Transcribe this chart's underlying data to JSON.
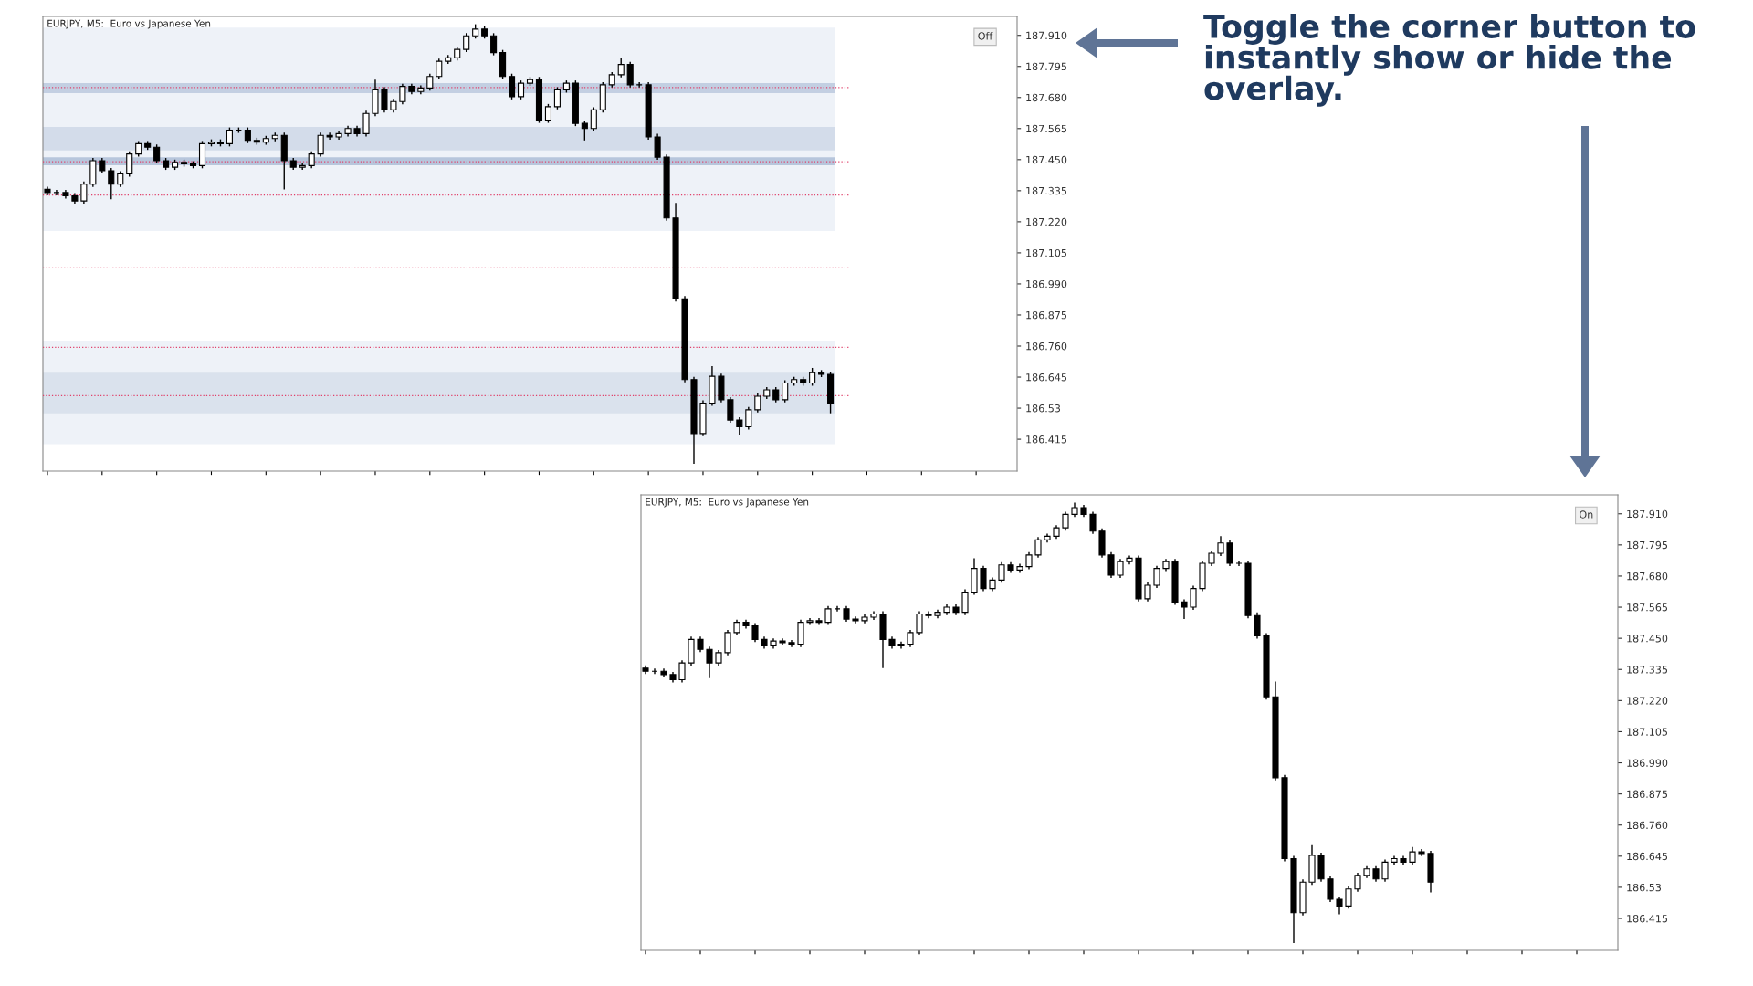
{
  "chart_data": [
    {
      "type": "candlestick",
      "title": "EURJPY, M5:  Euro vs Japanese Yen",
      "tick_labels": "y",
      "grid": false,
      "categories": [
        null,
        null,
        null,
        null,
        null,
        null,
        null,
        null,
        null,
        null,
        null,
        null,
        null,
        null,
        null,
        null,
        null,
        null,
        null,
        null,
        null,
        null,
        null,
        null,
        null,
        null,
        null,
        null,
        null,
        null,
        null,
        null,
        null,
        null,
        null,
        null,
        null,
        null,
        null,
        null,
        null,
        null,
        null,
        null,
        null,
        null,
        null,
        null,
        null,
        null,
        null,
        null,
        null,
        null,
        null,
        null,
        null,
        null,
        null,
        null,
        null,
        null,
        null,
        null,
        null,
        null,
        null,
        null,
        null,
        null,
        null,
        null,
        null,
        null,
        null,
        null,
        null,
        null,
        null,
        null,
        null,
        null,
        null,
        null,
        null,
        null,
        null,
        null,
        null,
        null,
        null,
        null,
        null,
        null,
        null,
        null,
        null,
        null,
        null,
        null,
        null,
        null,
        null,
        null,
        null,
        null,
        null
      ],
      "ohlc": [
        [
          187.34,
          187.35,
          187.318,
          187.328
        ],
        [
          187.328,
          187.338,
          187.318,
          187.328
        ],
        [
          187.328,
          187.338,
          187.306,
          187.316
        ],
        [
          187.316,
          187.326,
          187.287,
          187.297
        ],
        [
          187.297,
          187.369,
          187.287,
          187.359
        ],
        [
          187.359,
          187.456,
          187.349,
          187.446
        ],
        [
          187.446,
          187.456,
          187.399,
          187.409
        ],
        [
          187.409,
          187.419,
          187.303,
          187.359
        ],
        [
          187.359,
          187.407,
          187.349,
          187.397
        ],
        [
          187.397,
          187.481,
          187.387,
          187.471
        ],
        [
          187.471,
          187.519,
          187.461,
          187.509
        ],
        [
          187.509,
          187.519,
          187.486,
          187.496
        ],
        [
          187.496,
          187.506,
          187.436,
          187.446
        ],
        [
          187.446,
          187.456,
          187.412,
          187.422
        ],
        [
          187.422,
          187.45,
          187.412,
          187.44
        ],
        [
          187.44,
          187.45,
          187.424,
          187.434
        ],
        [
          187.434,
          187.444,
          187.418,
          187.428
        ],
        [
          187.428,
          187.519,
          187.418,
          187.509
        ],
        [
          187.509,
          187.525,
          187.499,
          187.515
        ],
        [
          187.515,
          187.525,
          187.499,
          187.509
        ],
        [
          187.509,
          187.569,
          187.499,
          187.559
        ],
        [
          187.559,
          187.569,
          187.549,
          187.559
        ],
        [
          187.559,
          187.569,
          187.511,
          187.521
        ],
        [
          187.521,
          187.531,
          187.505,
          187.515
        ],
        [
          187.515,
          187.538,
          187.505,
          187.528
        ],
        [
          187.528,
          187.55,
          187.518,
          187.54
        ],
        [
          187.54,
          187.55,
          187.34,
          187.446
        ],
        [
          187.446,
          187.456,
          187.412,
          187.422
        ],
        [
          187.422,
          187.438,
          187.412,
          187.428
        ],
        [
          187.428,
          187.481,
          187.418,
          187.471
        ],
        [
          187.471,
          187.55,
          187.461,
          187.54
        ],
        [
          187.54,
          187.55,
          187.524,
          187.534
        ],
        [
          187.534,
          187.556,
          187.524,
          187.546
        ],
        [
          187.546,
          187.575,
          187.536,
          187.565
        ],
        [
          187.565,
          187.575,
          187.536,
          187.546
        ],
        [
          187.546,
          187.631,
          187.536,
          187.621
        ],
        [
          187.621,
          187.746,
          187.611,
          187.708
        ],
        [
          187.708,
          187.718,
          187.624,
          187.634
        ],
        [
          187.634,
          187.675,
          187.624,
          187.665
        ],
        [
          187.665,
          187.731,
          187.655,
          187.721
        ],
        [
          187.721,
          187.731,
          187.692,
          187.702
        ],
        [
          187.702,
          187.725,
          187.692,
          187.715
        ],
        [
          187.715,
          187.768,
          187.705,
          187.758
        ],
        [
          187.758,
          187.824,
          187.748,
          187.814
        ],
        [
          187.814,
          187.837,
          187.804,
          187.827
        ],
        [
          187.827,
          187.868,
          187.817,
          187.858
        ],
        [
          187.858,
          187.918,
          187.848,
          187.908
        ],
        [
          187.908,
          187.951,
          187.898,
          187.933
        ],
        [
          187.933,
          187.943,
          187.898,
          187.908
        ],
        [
          187.908,
          187.918,
          187.836,
          187.846
        ],
        [
          187.846,
          187.856,
          187.748,
          187.758
        ],
        [
          187.758,
          187.768,
          187.673,
          187.683
        ],
        [
          187.683,
          187.743,
          187.673,
          187.733
        ],
        [
          187.733,
          187.756,
          187.723,
          187.746
        ],
        [
          187.746,
          187.756,
          187.586,
          187.596
        ],
        [
          187.596,
          187.656,
          187.586,
          187.646
        ],
        [
          187.646,
          187.718,
          187.636,
          187.708
        ],
        [
          187.708,
          187.743,
          187.698,
          187.733
        ],
        [
          187.733,
          187.743,
          187.574,
          187.584
        ],
        [
          187.584,
          187.594,
          187.521,
          187.565
        ],
        [
          187.565,
          187.644,
          187.555,
          187.634
        ],
        [
          187.634,
          187.737,
          187.624,
          187.727
        ],
        [
          187.727,
          187.774,
          187.717,
          187.764
        ],
        [
          187.764,
          187.827,
          187.754,
          187.802
        ],
        [
          187.802,
          187.812,
          187.717,
          187.727
        ],
        [
          187.727,
          187.737,
          187.717,
          187.727
        ],
        [
          187.727,
          187.737,
          187.524,
          187.534
        ],
        [
          187.534,
          187.546,
          187.449,
          187.459
        ],
        [
          187.459,
          187.469,
          187.224,
          187.234
        ],
        [
          187.234,
          187.29,
          186.925,
          186.935
        ],
        [
          186.935,
          186.945,
          186.626,
          186.636
        ],
        [
          186.636,
          186.646,
          186.324,
          186.436
        ],
        [
          186.436,
          186.559,
          186.426,
          186.549
        ],
        [
          186.549,
          186.686,
          186.539,
          186.648
        ],
        [
          186.648,
          186.658,
          186.551,
          186.561
        ],
        [
          186.561,
          186.571,
          186.476,
          186.486
        ],
        [
          186.486,
          186.496,
          186.43,
          186.461
        ],
        [
          186.461,
          186.534,
          186.451,
          186.524
        ],
        [
          186.524,
          186.584,
          186.514,
          186.574
        ],
        [
          186.574,
          186.608,
          186.564,
          186.598
        ],
        [
          186.598,
          186.608,
          186.551,
          186.561
        ],
        [
          186.561,
          186.633,
          186.551,
          186.623
        ],
        [
          186.623,
          186.646,
          186.613,
          186.636
        ],
        [
          186.636,
          186.646,
          186.613,
          186.623
        ],
        [
          186.623,
          186.679,
          186.613,
          186.661
        ],
        [
          186.661,
          186.671,
          186.645,
          186.655
        ],
        [
          186.655,
          186.665,
          186.511,
          186.549
        ],
        null,
        null,
        null,
        null,
        null,
        null,
        null,
        null,
        null,
        null,
        null,
        null,
        null,
        null,
        null,
        null,
        null,
        null,
        null,
        null
      ],
      "ylim": [
        186.297,
        187.98
      ],
      "yticks": [
        {
          "value": 187.91,
          "label": "187.910"
        },
        187.795,
        {
          "value": 187.68,
          "label": "187.680"
        },
        187.565,
        {
          "value": 187.45,
          "label": "187.450"
        },
        187.335,
        {
          "value": 187.22,
          "label": "187.220"
        },
        187.105,
        {
          "value": 186.99,
          "label": "186.990"
        },
        186.875,
        {
          "value": 186.76,
          "label": "186.760"
        },
        186.645,
        186.53,
        186.415
      ],
      "bands": [
        {
          "axis": "y",
          "from": 187.186,
          "to": 187.939,
          "color": "#eef2f8"
        },
        {
          "axis": "y",
          "from": 186.397,
          "to": 186.779,
          "color": "#eef2f8"
        },
        {
          "axis": "y",
          "from": 187.484,
          "to": 187.571,
          "color": "#d3dcea"
        },
        {
          "axis": "y",
          "from": 187.696,
          "to": 187.733,
          "color": "#c3cfe2"
        },
        {
          "axis": "y",
          "from": 187.429,
          "to": 187.459,
          "color": "#b7c6dc"
        },
        {
          "axis": "y",
          "from": 186.511,
          "to": 186.661,
          "color": "#dae2ed"
        }
      ],
      "ref_lines": [
        {
          "axis": "y",
          "value": 187.717,
          "color": "#e0406a",
          "line_style": "dotted"
        },
        {
          "axis": "y",
          "value": 187.442,
          "color": "#e0406a",
          "line_style": "dotted"
        },
        {
          "axis": "y",
          "value": 187.319,
          "color": "#e0406a",
          "line_style": "dotted"
        },
        {
          "axis": "y",
          "value": 187.052,
          "color": "#e0406a",
          "line_style": "dotted"
        },
        {
          "axis": "y",
          "value": 186.755,
          "color": "#e0406a",
          "line_style": "dotted"
        },
        {
          "axis": "y",
          "value": 186.576,
          "color": "#e0406a",
          "line_style": "dotted"
        }
      ],
      "annotations": [
        "Off",
        "Toggle the corner button to instantly show or hide the overlay."
      ]
    },
    {
      "type": "candlestick",
      "title": "EURJPY, M5:  Euro vs Japanese Yen",
      "tick_labels": "y",
      "grid": false,
      "categories": [
        null,
        null,
        null,
        null,
        null,
        null,
        null,
        null,
        null,
        null,
        null,
        null,
        null,
        null,
        null,
        null,
        null,
        null,
        null,
        null,
        null,
        null,
        null,
        null,
        null,
        null,
        null,
        null,
        null,
        null,
        null,
        null,
        null,
        null,
        null,
        null,
        null,
        null,
        null,
        null,
        null,
        null,
        null,
        null,
        null,
        null,
        null,
        null,
        null,
        null,
        null,
        null,
        null,
        null,
        null,
        null,
        null,
        null,
        null,
        null,
        null,
        null,
        null,
        null,
        null,
        null,
        null,
        null,
        null,
        null,
        null,
        null,
        null,
        null,
        null,
        null,
        null,
        null,
        null,
        null,
        null,
        null,
        null,
        null,
        null,
        null,
        null,
        null,
        null,
        null,
        null,
        null,
        null,
        null,
        null,
        null,
        null,
        null,
        null,
        null,
        null,
        null,
        null,
        null,
        null,
        null,
        null
      ],
      "ohlc": [
        [
          187.34,
          187.35,
          187.318,
          187.328
        ],
        [
          187.328,
          187.338,
          187.318,
          187.328
        ],
        [
          187.328,
          187.338,
          187.306,
          187.316
        ],
        [
          187.316,
          187.326,
          187.287,
          187.297
        ],
        [
          187.297,
          187.369,
          187.287,
          187.359
        ],
        [
          187.359,
          187.456,
          187.349,
          187.446
        ],
        [
          187.446,
          187.456,
          187.399,
          187.409
        ],
        [
          187.409,
          187.419,
          187.303,
          187.359
        ],
        [
          187.359,
          187.407,
          187.349,
          187.397
        ],
        [
          187.397,
          187.481,
          187.387,
          187.471
        ],
        [
          187.471,
          187.519,
          187.461,
          187.509
        ],
        [
          187.509,
          187.519,
          187.486,
          187.496
        ],
        [
          187.496,
          187.506,
          187.436,
          187.446
        ],
        [
          187.446,
          187.456,
          187.412,
          187.422
        ],
        [
          187.422,
          187.45,
          187.412,
          187.44
        ],
        [
          187.44,
          187.45,
          187.424,
          187.434
        ],
        [
          187.434,
          187.444,
          187.418,
          187.428
        ],
        [
          187.428,
          187.519,
          187.418,
          187.509
        ],
        [
          187.509,
          187.525,
          187.499,
          187.515
        ],
        [
          187.515,
          187.525,
          187.499,
          187.509
        ],
        [
          187.509,
          187.569,
          187.499,
          187.559
        ],
        [
          187.559,
          187.569,
          187.549,
          187.559
        ],
        [
          187.559,
          187.569,
          187.511,
          187.521
        ],
        [
          187.521,
          187.531,
          187.505,
          187.515
        ],
        [
          187.515,
          187.538,
          187.505,
          187.528
        ],
        [
          187.528,
          187.55,
          187.518,
          187.54
        ],
        [
          187.54,
          187.55,
          187.34,
          187.446
        ],
        [
          187.446,
          187.456,
          187.412,
          187.422
        ],
        [
          187.422,
          187.438,
          187.412,
          187.428
        ],
        [
          187.428,
          187.481,
          187.418,
          187.471
        ],
        [
          187.471,
          187.55,
          187.461,
          187.54
        ],
        [
          187.54,
          187.55,
          187.524,
          187.534
        ],
        [
          187.534,
          187.556,
          187.524,
          187.546
        ],
        [
          187.546,
          187.575,
          187.536,
          187.565
        ],
        [
          187.565,
          187.575,
          187.536,
          187.546
        ],
        [
          187.546,
          187.631,
          187.536,
          187.621
        ],
        [
          187.621,
          187.746,
          187.611,
          187.708
        ],
        [
          187.708,
          187.718,
          187.624,
          187.634
        ],
        [
          187.634,
          187.675,
          187.624,
          187.665
        ],
        [
          187.665,
          187.731,
          187.655,
          187.721
        ],
        [
          187.721,
          187.731,
          187.692,
          187.702
        ],
        [
          187.702,
          187.725,
          187.692,
          187.715
        ],
        [
          187.715,
          187.768,
          187.705,
          187.758
        ],
        [
          187.758,
          187.824,
          187.748,
          187.814
        ],
        [
          187.814,
          187.837,
          187.804,
          187.827
        ],
        [
          187.827,
          187.868,
          187.817,
          187.858
        ],
        [
          187.858,
          187.918,
          187.848,
          187.908
        ],
        [
          187.908,
          187.951,
          187.898,
          187.933
        ],
        [
          187.933,
          187.943,
          187.898,
          187.908
        ],
        [
          187.908,
          187.918,
          187.836,
          187.846
        ],
        [
          187.846,
          187.856,
          187.748,
          187.758
        ],
        [
          187.758,
          187.768,
          187.673,
          187.683
        ],
        [
          187.683,
          187.743,
          187.673,
          187.733
        ],
        [
          187.733,
          187.756,
          187.723,
          187.746
        ],
        [
          187.746,
          187.756,
          187.586,
          187.596
        ],
        [
          187.596,
          187.656,
          187.586,
          187.646
        ],
        [
          187.646,
          187.718,
          187.636,
          187.708
        ],
        [
          187.708,
          187.743,
          187.698,
          187.733
        ],
        [
          187.733,
          187.743,
          187.574,
          187.584
        ],
        [
          187.584,
          187.594,
          187.521,
          187.565
        ],
        [
          187.565,
          187.644,
          187.555,
          187.634
        ],
        [
          187.634,
          187.737,
          187.624,
          187.727
        ],
        [
          187.727,
          187.774,
          187.717,
          187.764
        ],
        [
          187.764,
          187.827,
          187.754,
          187.802
        ],
        [
          187.802,
          187.812,
          187.717,
          187.727
        ],
        [
          187.727,
          187.737,
          187.717,
          187.727
        ],
        [
          187.727,
          187.737,
          187.524,
          187.534
        ],
        [
          187.534,
          187.546,
          187.449,
          187.459
        ],
        [
          187.459,
          187.469,
          187.224,
          187.234
        ],
        [
          187.234,
          187.29,
          186.925,
          186.935
        ],
        [
          186.935,
          186.945,
          186.626,
          186.636
        ],
        [
          186.636,
          186.646,
          186.324,
          186.436
        ],
        [
          186.436,
          186.559,
          186.426,
          186.549
        ],
        [
          186.549,
          186.686,
          186.539,
          186.648
        ],
        [
          186.648,
          186.658,
          186.551,
          186.561
        ],
        [
          186.561,
          186.571,
          186.476,
          186.486
        ],
        [
          186.486,
          186.496,
          186.43,
          186.461
        ],
        [
          186.461,
          186.534,
          186.451,
          186.524
        ],
        [
          186.524,
          186.584,
          186.514,
          186.574
        ],
        [
          186.574,
          186.608,
          186.564,
          186.598
        ],
        [
          186.598,
          186.608,
          186.551,
          186.561
        ],
        [
          186.561,
          186.633,
          186.551,
          186.623
        ],
        [
          186.623,
          186.646,
          186.613,
          186.636
        ],
        [
          186.636,
          186.646,
          186.613,
          186.623
        ],
        [
          186.623,
          186.679,
          186.613,
          186.661
        ],
        [
          186.661,
          186.671,
          186.645,
          186.655
        ],
        [
          186.655,
          186.665,
          186.511,
          186.549
        ],
        null,
        null,
        null,
        null,
        null,
        null,
        null,
        null,
        null,
        null,
        null,
        null,
        null,
        null,
        null,
        null,
        null,
        null,
        null,
        null
      ],
      "ylim": [
        186.297,
        187.98
      ],
      "yticks": [
        {
          "value": 187.91,
          "label": "187.910"
        },
        187.795,
        {
          "value": 187.68,
          "label": "187.680"
        },
        187.565,
        {
          "value": 187.45,
          "label": "187.450"
        },
        187.335,
        {
          "value": 187.22,
          "label": "187.220"
        },
        187.105,
        {
          "value": 186.99,
          "label": "186.990"
        },
        186.875,
        {
          "value": 186.76,
          "label": "186.760"
        },
        186.645,
        186.53,
        186.415
      ],
      "annotations": [
        "On"
      ]
    }
  ]
}
